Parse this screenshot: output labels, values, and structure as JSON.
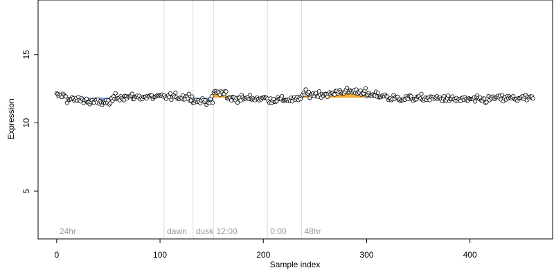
{
  "chart_data": {
    "type": "scatter",
    "xlabel": "Sample index",
    "ylabel": "Expression",
    "xlim": [
      -18,
      480
    ],
    "ylim": [
      1.5,
      19
    ],
    "x_ticks": [
      0,
      100,
      200,
      300,
      400
    ],
    "x_tick_labels": [
      "0",
      "100",
      "200",
      "300",
      "400"
    ],
    "y_ticks": [
      5,
      10,
      15
    ],
    "y_tick_labels": [
      "5",
      "10",
      "15"
    ],
    "grid": false,
    "n_points": 462,
    "baseline": 11.85,
    "colors": {
      "point_fill": "#ffffff",
      "point_stroke": "#000000",
      "high_fill": "#f5a623",
      "low_fill": "#6a8fd0",
      "region_line": "#dddddd",
      "region_label": "#9a9a9a"
    },
    "regions": [
      {
        "label": "24hr",
        "x": 0
      },
      {
        "label": "dawn",
        "x": 104
      },
      {
        "label": "dusk",
        "x": 132
      },
      {
        "label": "12:00",
        "x": 152
      },
      {
        "label": "0:00",
        "x": 204
      },
      {
        "label": "48hr",
        "x": 237
      }
    ],
    "segments": [
      {
        "x_from": 0,
        "x_to": 10,
        "mean": 12.0
      },
      {
        "x_from": 10,
        "x_to": 30,
        "mean": 11.7
      },
      {
        "x_from": 30,
        "x_to": 55,
        "mean": 11.5
      },
      {
        "x_from": 55,
        "x_to": 104,
        "mean": 11.9
      },
      {
        "x_from": 104,
        "x_to": 132,
        "mean": 11.9
      },
      {
        "x_from": 132,
        "x_to": 152,
        "mean": 11.6
      },
      {
        "x_from": 152,
        "x_to": 165,
        "mean": 12.2
      },
      {
        "x_from": 165,
        "x_to": 204,
        "mean": 11.8
      },
      {
        "x_from": 204,
        "x_to": 237,
        "mean": 11.7
      },
      {
        "x_from": 237,
        "x_to": 270,
        "mean": 12.1
      },
      {
        "x_from": 270,
        "x_to": 300,
        "mean": 12.3
      },
      {
        "x_from": 300,
        "x_to": 320,
        "mean": 12.0
      },
      {
        "x_from": 320,
        "x_to": 380,
        "mean": 11.8
      },
      {
        "x_from": 380,
        "x_to": 420,
        "mean": 11.7
      },
      {
        "x_from": 420,
        "x_to": 462,
        "mean": 11.8
      }
    ],
    "noise": 0.22
  }
}
